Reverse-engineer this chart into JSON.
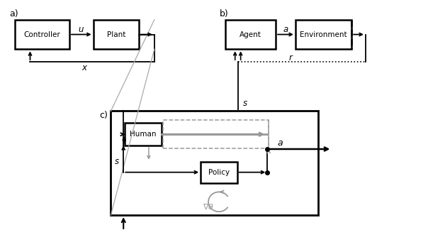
{
  "bg_color": "#ffffff",
  "fig_width": 6.04,
  "fig_height": 3.24,
  "label_a": "a)",
  "label_b": "b)",
  "label_c": "c)",
  "controller_label": "Controller",
  "plant_label": "Plant",
  "agent_label": "Agent",
  "environment_label": "Environment",
  "human_label": "Human",
  "policy_label": "Policy",
  "u_label": "$\\mathit{u}$",
  "x_label": "$\\mathit{x}$",
  "a_label": "$\\mathit{a}$",
  "r_label": "$\\mathit{r}$",
  "s_label": "$\\mathit{s}$",
  "grad_label": "$\\nabla\\theta$",
  "gray": "#999999",
  "lgray": "#aaaaaa",
  "black": "#000000"
}
